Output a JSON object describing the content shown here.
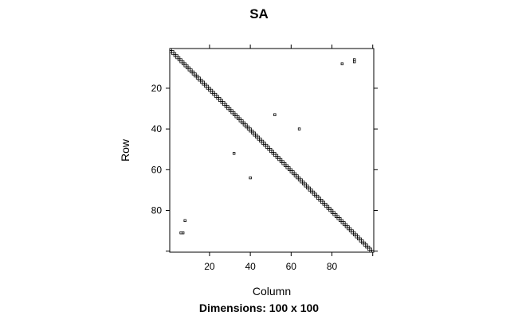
{
  "chart_data": {
    "type": "matrix-sparsity",
    "title": "SA",
    "xlabel": "Column",
    "ylabel": "Row",
    "caption": "Dimensions: 100 x 100",
    "rows": 100,
    "cols": 100,
    "xticks": [
      20,
      40,
      60,
      80
    ],
    "yticks": [
      20,
      40,
      60,
      80
    ],
    "y_axis_inverted": true,
    "grid": false,
    "diagonal_bands": [
      {
        "row_offset": 0,
        "from": 1,
        "to": 100
      },
      {
        "row_offset": 1,
        "from": 1,
        "to": 99
      }
    ],
    "offdiag_points": [
      {
        "row": 6,
        "col": 91
      },
      {
        "row": 7,
        "col": 91
      },
      {
        "row": 8,
        "col": 85
      },
      {
        "row": 33,
        "col": 52
      },
      {
        "row": 40,
        "col": 64
      },
      {
        "row": 52,
        "col": 32
      },
      {
        "row": 64,
        "col": 40
      },
      {
        "row": 85,
        "col": 8
      },
      {
        "row": 91,
        "col": 6
      },
      {
        "row": 91,
        "col": 7
      }
    ]
  }
}
